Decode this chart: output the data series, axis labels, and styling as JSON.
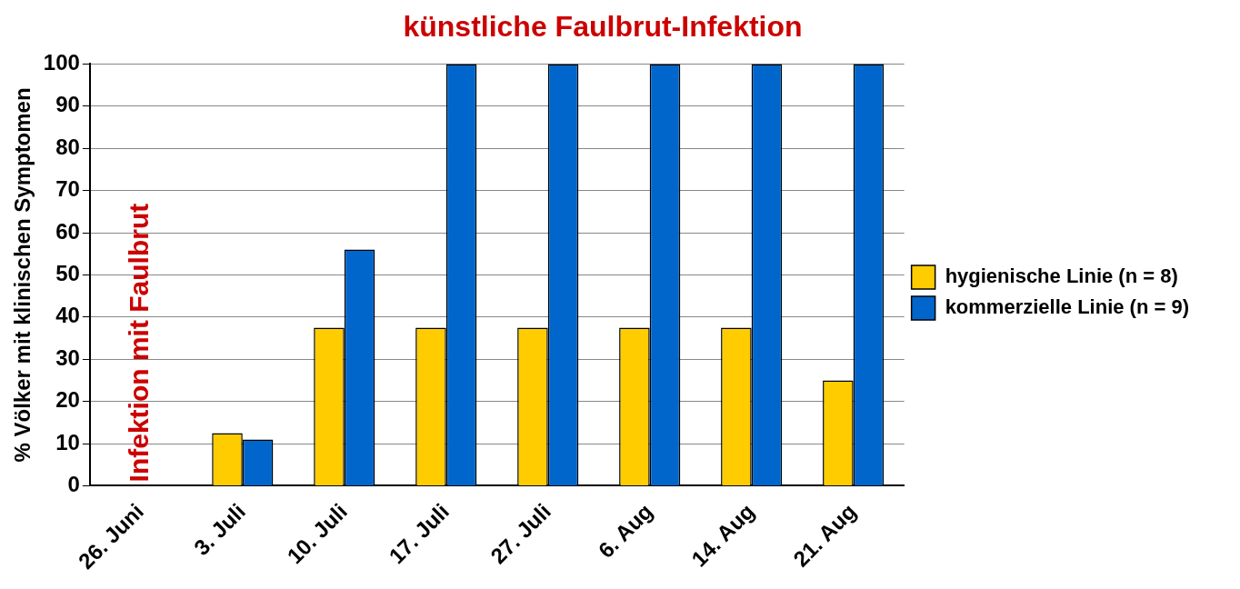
{
  "chart_data": {
    "type": "bar",
    "title": "künstliche Faulbrut-Infektion",
    "ylabel": "% Völker mit klinischen Symptomen",
    "categories": [
      "26. Juni",
      "3. Juli",
      "10. Juli",
      "17. Juli",
      "27. Juli",
      "6. Aug",
      "14. Aug",
      "21. Aug"
    ],
    "series": [
      {
        "name": "hygienische Linie (n = 8)",
        "color": "#ffcc00",
        "values": [
          0,
          12.5,
          37.5,
          37.5,
          37.5,
          37.5,
          37.5,
          25
        ]
      },
      {
        "name": "kommerzielle Linie (n = 9)",
        "color": "#0066cc",
        "values": [
          0,
          11,
          56,
          100,
          100,
          100,
          100,
          100
        ]
      }
    ],
    "ylim": [
      0,
      100
    ],
    "yticks": [
      0,
      10,
      20,
      30,
      40,
      50,
      60,
      70,
      80,
      90,
      100
    ],
    "grid": "y",
    "legend": "right",
    "annotations": [
      "Infektion mit Faulbrut"
    ]
  }
}
